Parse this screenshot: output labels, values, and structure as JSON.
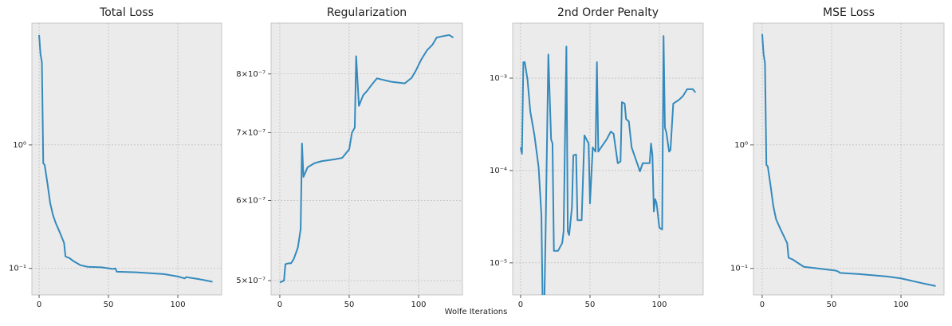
{
  "xlabel": "Wolfe Iterations",
  "chart_data": [
    {
      "type": "line",
      "title": "Total Loss",
      "log_y": true,
      "grid": true,
      "color": "#348abd",
      "x": [
        0,
        1,
        2,
        3,
        4,
        6,
        8,
        10,
        12,
        15,
        18,
        19,
        22,
        25,
        30,
        35,
        45,
        53,
        55,
        56,
        70,
        90,
        100,
        105,
        106,
        115,
        125
      ],
      "values": [
        7.77,
        5.44,
        4.69,
        0.71,
        0.69,
        0.49,
        0.338,
        0.27,
        0.233,
        0.195,
        0.161,
        0.125,
        0.121,
        0.114,
        0.106,
        0.103,
        0.102,
        0.099,
        0.1,
        0.094,
        0.093,
        0.09,
        0.086,
        0.083,
        0.085,
        0.082,
        0.078
      ],
      "xlim": [
        -5.2,
        131.6
      ],
      "ylim": [
        0.061,
        9.7
      ],
      "xticks": [
        0,
        50,
        100
      ],
      "yticks": [
        {
          "value": 0.1,
          "label": "10⁻¹"
        },
        {
          "value": 1,
          "label": "10⁰"
        }
      ]
    },
    {
      "type": "line",
      "title": "Regularization",
      "log_y": true,
      "grid": true,
      "color": "#348abd",
      "x": [
        0,
        3,
        4,
        6,
        8,
        10,
        13,
        15,
        16,
        17,
        20,
        25,
        30,
        40,
        45,
        50,
        52,
        54,
        55,
        57,
        60,
        63,
        66,
        70,
        80,
        90,
        95,
        98,
        102,
        106,
        110,
        113,
        118,
        122,
        125
      ],
      "values": [
        4.98e-07,
        5e-07,
        5.19e-07,
        5.2e-07,
        5.2e-07,
        5.25e-07,
        5.39e-07,
        5.62e-07,
        6.83e-07,
        6.33e-07,
        6.47e-07,
        6.53e-07,
        6.56e-07,
        6.59e-07,
        6.61e-07,
        6.74e-07,
        7e-07,
        7.08e-07,
        8.33e-07,
        7.44e-07,
        7.62e-07,
        7.7e-07,
        7.8e-07,
        7.92e-07,
        7.86e-07,
        7.83e-07,
        7.93e-07,
        8.06e-07,
        8.27e-07,
        8.44e-07,
        8.55e-07,
        8.69e-07,
        8.72e-07,
        8.74e-07,
        8.69e-07
      ],
      "xlim": [
        -6.3,
        131.6
      ],
      "ylim": [
        4.84e-07,
        8.98e-07
      ],
      "xticks": [
        0,
        50,
        100
      ],
      "yticks": [
        {
          "value": 5e-07,
          "label": "5×10⁻⁷"
        },
        {
          "value": 6e-07,
          "label": "6×10⁻⁷"
        },
        {
          "value": 7e-07,
          "label": "7×10⁻⁷"
        },
        {
          "value": 8e-07,
          "label": "8×10⁻⁷"
        }
      ]
    },
    {
      "type": "line",
      "title": "2nd Order Penalty",
      "log_y": true,
      "grid": true,
      "color": "#348abd",
      "x": [
        0,
        1,
        2,
        3,
        5,
        7,
        10,
        13,
        15,
        16,
        17,
        18,
        20,
        22,
        23,
        24,
        27,
        30,
        31,
        33,
        34,
        35,
        37,
        38,
        40,
        41,
        44,
        46,
        49,
        50,
        52,
        54,
        55,
        56,
        58,
        62,
        65,
        67,
        70,
        72,
        73,
        75,
        76,
        78,
        80,
        83,
        86,
        88,
        93,
        94,
        95,
        96,
        97,
        98,
        100,
        102,
        103,
        104,
        105,
        107,
        108,
        110,
        114,
        117,
        120,
        124,
        126
      ],
      "values": [
        0.000178,
        0.000152,
        0.00149,
        0.00149,
        0.00096,
        0.000435,
        0.00024,
        0.000108,
        3.3e-05,
        2.75e-06,
        3e-06,
        2e-05,
        0.0018,
        0.000217,
        0.000196,
        1.35e-05,
        1.35e-05,
        1.64e-05,
        2.2e-05,
        0.0022,
        2.2e-05,
        2e-05,
        4e-05,
        0.000146,
        0.000149,
        2.9e-05,
        2.9e-05,
        0.00024,
        0.000196,
        4.4e-05,
        0.000178,
        0.00016,
        0.00149,
        0.00016,
        0.000178,
        0.000217,
        0.000264,
        0.00025,
        0.00012,
        0.000125,
        0.00055,
        0.00053,
        0.00036,
        0.00034,
        0.000178,
        0.000132,
        9.8e-05,
        0.00012,
        0.00012,
        0.000196,
        0.000146,
        3.6e-05,
        4.9e-05,
        4.4e-05,
        2.4e-05,
        2.3e-05,
        0.00286,
        0.00029,
        0.00026,
        0.00016,
        0.000167,
        0.00053,
        0.00058,
        0.00064,
        0.00076,
        0.00076,
        0.0007
      ],
      "xlim": [
        -5.7,
        131.6
      ],
      "ylim": [
        4.5e-06,
        0.00394
      ],
      "xticks": [
        0,
        50,
        100
      ],
      "yticks": [
        {
          "value": 1e-05,
          "label": "10⁻⁵"
        },
        {
          "value": 0.0001,
          "label": "10⁻⁴"
        },
        {
          "value": 0.001,
          "label": "10⁻³"
        }
      ]
    },
    {
      "type": "line",
      "title": "MSE Loss",
      "log_y": true,
      "grid": true,
      "color": "#348abd",
      "x": [
        0,
        1,
        2,
        3,
        4,
        6,
        8,
        10,
        13,
        18,
        19,
        22,
        30,
        40,
        53,
        55,
        56,
        70,
        90,
        100,
        115,
        125
      ],
      "values": [
        7.9,
        5.4,
        4.6,
        0.69,
        0.67,
        0.47,
        0.32,
        0.25,
        0.21,
        0.16,
        0.122,
        0.118,
        0.103,
        0.1,
        0.096,
        0.094,
        0.092,
        0.09,
        0.086,
        0.083,
        0.076,
        0.072
      ],
      "xlim": [
        -6.3,
        131
      ],
      "ylim": [
        0.061,
        9.7
      ],
      "xticks": [
        0,
        50,
        100
      ],
      "yticks": [
        {
          "value": 0.1,
          "label": "10⁻¹"
        },
        {
          "value": 1,
          "label": "10⁰"
        }
      ]
    }
  ]
}
